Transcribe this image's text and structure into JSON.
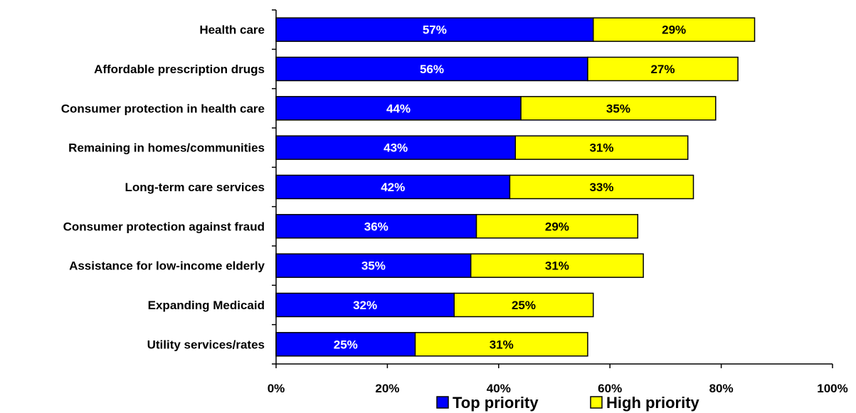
{
  "chart_data": {
    "type": "bar",
    "orientation": "horizontal",
    "stacked": true,
    "categories": [
      "Health care",
      "Affordable prescription drugs",
      "Consumer protection in health care",
      "Remaining in homes/communities",
      "Long-term care services",
      "Consumer protection against fraud",
      "Assistance for low-income elderly",
      "Expanding Medicaid",
      "Utility services/rates"
    ],
    "series": [
      {
        "name": "Top priority",
        "color": "#0000ff",
        "values": [
          57,
          56,
          44,
          43,
          42,
          36,
          35,
          32,
          25
        ],
        "labels": [
          "57%",
          "56%",
          "44%",
          "43%",
          "42%",
          "36%",
          "35%",
          "32%",
          "25%"
        ]
      },
      {
        "name": "High priority",
        "color": "#ffff00",
        "values": [
          29,
          27,
          35,
          31,
          33,
          29,
          31,
          25,
          31
        ],
        "labels": [
          "29%",
          "27%",
          "35%",
          "31%",
          "33%",
          "29%",
          "31%",
          "25%",
          "31%"
        ]
      }
    ],
    "xlim": [
      0,
      100
    ],
    "xticks": [
      0,
      20,
      40,
      60,
      80,
      100
    ],
    "xtick_labels": [
      "0%",
      "20%",
      "40%",
      "60%",
      "80%",
      "100%"
    ],
    "grid": false,
    "legend_position": "bottom"
  }
}
